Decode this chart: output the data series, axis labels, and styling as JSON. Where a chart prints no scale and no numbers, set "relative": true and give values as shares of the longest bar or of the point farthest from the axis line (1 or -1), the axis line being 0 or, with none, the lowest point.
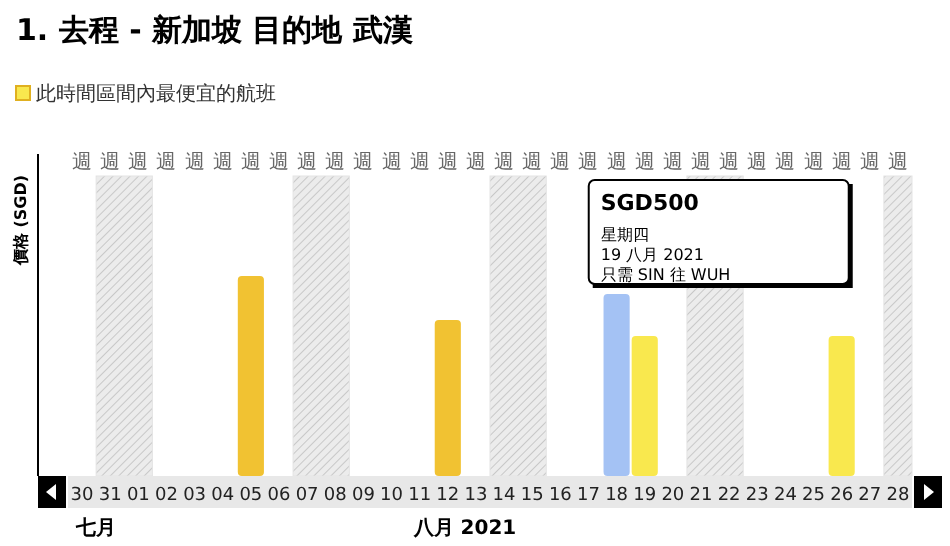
{
  "chart_data": {
    "type": "bar",
    "title": "1. 去程 - 新加坡 目的地 武漢",
    "ylabel": "價格 (SGD)",
    "relative": true,
    "legend": "top left",
    "categories": [
      "30",
      "31",
      "01",
      "02",
      "03",
      "04",
      "05",
      "06",
      "07",
      "08",
      "09",
      "10",
      "11",
      "12",
      "13",
      "14",
      "15",
      "16",
      "17",
      "18",
      "19",
      "20",
      "21",
      "22",
      "23",
      "24",
      "25",
      "26",
      "27",
      "28"
    ],
    "series": [
      {
        "name": "此時間區間內最便宜的航班",
        "color": "#f9e84e",
        "values": [
          null,
          null,
          null,
          null,
          null,
          null,
          1.0,
          null,
          null,
          null,
          null,
          null,
          null,
          0.78,
          null,
          null,
          null,
          null,
          null,
          0.91,
          0.7,
          null,
          null,
          null,
          null,
          null,
          null,
          0.7,
          null,
          null
        ],
        "colors": [
          null,
          null,
          null,
          null,
          null,
          null,
          "#f1c232",
          null,
          null,
          null,
          null,
          null,
          null,
          "#f1c232",
          null,
          null,
          null,
          null,
          null,
          "#a4c2f4",
          "#f9e84e",
          null,
          null,
          null,
          null,
          null,
          null,
          "#f9e84e",
          null,
          null
        ]
      }
    ],
    "bands": [
      {
        "axis": "x",
        "from": "31",
        "to": "01",
        "color": "#e4e4e4"
      },
      {
        "axis": "x",
        "from": "07",
        "to": "08",
        "color": "#e4e4e4"
      },
      {
        "axis": "x",
        "from": "14",
        "to": "15",
        "color": "#e4e4e4"
      },
      {
        "axis": "x",
        "from": "21",
        "to": "22",
        "color": "#e4e4e4"
      },
      {
        "axis": "x",
        "from": "28",
        "to": "28",
        "color": "#e4e4e4"
      }
    ],
    "annotations": [
      "週",
      "週",
      "週",
      "週",
      "週",
      "週",
      "週",
      "週",
      "週",
      "週",
      "週",
      "週",
      "週",
      "週",
      "週",
      "週",
      "週",
      "週",
      "週",
      "週",
      "週",
      "週",
      "週",
      "週",
      "週",
      "週",
      "週",
      "週",
      "週",
      "週",
      "七月",
      "八月 2021",
      "SGD500",
      "星期四",
      "19 八月 2021",
      "只需 SIN 往 WUH"
    ]
  }
}
